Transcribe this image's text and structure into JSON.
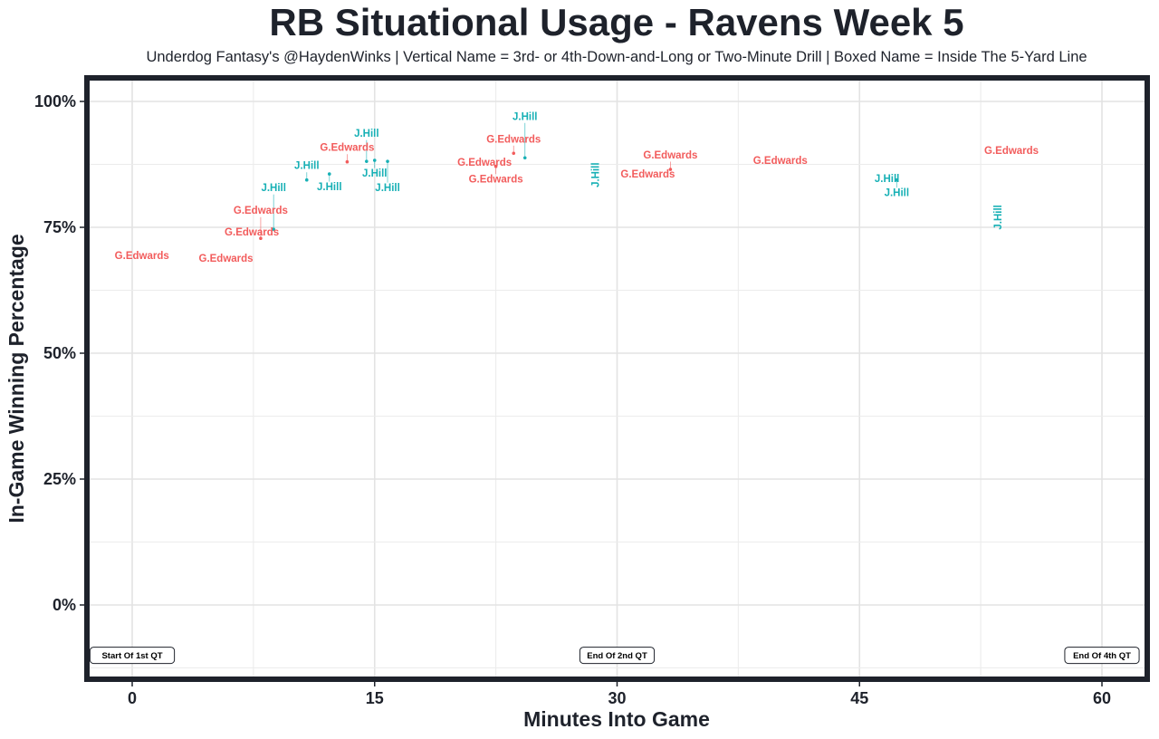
{
  "chart_data": {
    "type": "scatter",
    "title": "RB Situational Usage - Ravens Week 5",
    "subtitle": "Underdog Fantasy's @HaydenWinks | Vertical Name = 3rd- or 4th-Down-and-Long or Two-Minute Drill | Boxed Name = Inside The 5-Yard Line",
    "xlabel": "Minutes Into Game",
    "ylabel": "In-Game Winning Percentage",
    "xlim": [
      -2.7,
      63
    ],
    "ylim": [
      -15,
      105
    ],
    "x_ticks": [
      0,
      15,
      30,
      45,
      60
    ],
    "x_tick_labels": [
      "0",
      "15",
      "30",
      "45",
      "60"
    ],
    "y_ticks": [
      0,
      25,
      50,
      75,
      100
    ],
    "y_tick_labels": [
      "0%",
      "25%",
      "50%",
      "75%",
      "100%"
    ],
    "grid": true,
    "colors": {
      "G.Edwards": "#f25c5c",
      "J.Hill": "#17b0b5",
      "frame": "#1e222b",
      "grid": "#e6e6e6"
    },
    "points": [
      {
        "player": "G.Edwards",
        "x": 0.6,
        "y": 69.2,
        "vertical": false
      },
      {
        "player": "G.Edwards",
        "x": 5.8,
        "y": 68.7,
        "vertical": false
      },
      {
        "player": "G.Edwards",
        "x": 7.4,
        "y": 73.9,
        "vertical": false
      },
      {
        "player": "G.Edwards",
        "x": 7.95,
        "y": 72.8,
        "vertical": false
      },
      {
        "player": "J.Hill",
        "x": 8.75,
        "y": 74.6,
        "vertical": false
      },
      {
        "player": "J.Hill",
        "x": 10.8,
        "y": 84.4,
        "vertical": false
      },
      {
        "player": "J.Hill",
        "x": 12.2,
        "y": 85.6,
        "vertical": false
      },
      {
        "player": "G.Edwards",
        "x": 13.3,
        "y": 88.0,
        "vertical": false
      },
      {
        "player": "J.Hill",
        "x": 14.5,
        "y": 88.1,
        "vertical": false
      },
      {
        "player": "J.Hill",
        "x": 15.0,
        "y": 88.3,
        "vertical": false
      },
      {
        "player": "J.Hill",
        "x": 15.8,
        "y": 88.1,
        "vertical": false
      },
      {
        "player": "G.Edwards",
        "x": 21.8,
        "y": 87.8,
        "vertical": false
      },
      {
        "player": "G.Edwards",
        "x": 22.5,
        "y": 87.1,
        "vertical": false
      },
      {
        "player": "G.Edwards",
        "x": 23.6,
        "y": 89.7,
        "vertical": false
      },
      {
        "player": "J.Hill",
        "x": 24.3,
        "y": 88.8,
        "vertical": false
      },
      {
        "player": "J.Hill",
        "x": 28.7,
        "y": 85.4,
        "vertical": true
      },
      {
        "player": "G.Edwards",
        "x": 31.9,
        "y": 85.4,
        "vertical": false
      },
      {
        "player": "G.Edwards",
        "x": 33.3,
        "y": 86.5,
        "vertical": false
      },
      {
        "player": "G.Edwards",
        "x": 40.1,
        "y": 88.1,
        "vertical": false
      },
      {
        "player": "J.Hill",
        "x": 46.7,
        "y": 84.5,
        "vertical": false
      },
      {
        "player": "J.Hill",
        "x": 47.3,
        "y": 84.4,
        "vertical": false
      },
      {
        "player": "J.Hill",
        "x": 53.6,
        "y": 77.0,
        "vertical": true
      },
      {
        "player": "G.Edwards",
        "x": 54.4,
        "y": 90.1,
        "vertical": false
      }
    ],
    "annotations": [
      {
        "label": "Start Of 1st QT",
        "x": 0,
        "y": -10
      },
      {
        "label": "End Of 2nd QT",
        "x": 30,
        "y": -10
      },
      {
        "label": "End Of 4th QT",
        "x": 60,
        "y": -10
      }
    ]
  }
}
